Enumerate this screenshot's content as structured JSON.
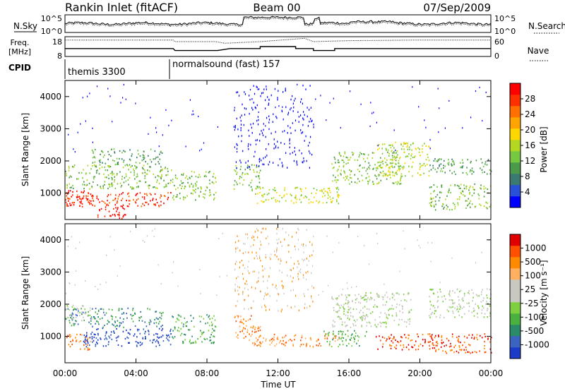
{
  "header": {
    "station": "Rankin Inlet (fitACF)",
    "beam": "Beam 00",
    "date": "07/Sep/2009"
  },
  "chart_data": [
    {
      "type": "line",
      "name": "noise-panel",
      "left_label": "N.Sky",
      "right_label": "N.Search",
      "left_ticks": [
        "10^5",
        "10^0"
      ],
      "right_ticks": [
        "10^5",
        "10^0"
      ],
      "series_style": [
        "solid",
        "dotted"
      ]
    },
    {
      "type": "line",
      "name": "freq-nave-panel",
      "left_label_line1": "Freq.",
      "left_label_line2": "[MHz]",
      "right_label": "Nave",
      "left_ticks": [
        18,
        8
      ],
      "right_ticks": [
        60,
        0
      ],
      "ylim_left": [
        8,
        18
      ],
      "ylim_right": [
        0,
        60
      ],
      "freq_steps": [
        [
          0,
          6.1,
          12
        ],
        [
          6.2,
          8.6,
          11
        ],
        [
          9.3,
          11.0,
          12
        ],
        [
          11.0,
          13.0,
          13
        ],
        [
          13.0,
          14.0,
          12
        ],
        [
          14.0,
          15.2,
          11
        ],
        [
          15.2,
          20.0,
          12
        ],
        [
          20.0,
          24.0,
          12
        ]
      ],
      "nave_points": [
        [
          0,
          50
        ],
        [
          6.1,
          50
        ],
        [
          6.2,
          45
        ],
        [
          8.5,
          45
        ],
        [
          9.0,
          40
        ],
        [
          11.0,
          45
        ],
        [
          13.5,
          55
        ],
        [
          14.0,
          45
        ],
        [
          16.0,
          48
        ],
        [
          20.0,
          50
        ],
        [
          24.0,
          50
        ]
      ]
    },
    {
      "type": "table",
      "name": "cpid-strip",
      "label": "CPID",
      "modes": [
        {
          "name": "themis 3300",
          "start_hour": 0
        },
        {
          "name": "normalsound (fast) 157",
          "start_hour": 6.15
        }
      ]
    },
    {
      "type": "heatmap",
      "name": "power-panel",
      "ylabel": "Slant Range [km]",
      "yticks": [
        1000,
        2000,
        3000,
        4000
      ],
      "ylim": [
        180,
        4500
      ],
      "xlim_hours": [
        0,
        24
      ],
      "colorbar_label": "Power [dB]",
      "colorbar_ticks": [
        4,
        8,
        12,
        16,
        20,
        24,
        28
      ],
      "colorbar_colors": [
        "#0000ff",
        "#2850d8",
        "#3a7a70",
        "#4a9a4a",
        "#76c840",
        "#b4d820",
        "#ffd700",
        "#ffa400",
        "#ff7000",
        "#ff3000",
        "#ff0000"
      ],
      "echo_regions": [
        {
          "x": [
            0.0,
            1.8
          ],
          "y": [
            600,
            1100
          ],
          "level": 10
        },
        {
          "x": [
            0.0,
            6.0
          ],
          "y": [
            600,
            1050
          ],
          "level": 9
        },
        {
          "x": [
            0.0,
            6.0
          ],
          "y": [
            1150,
            1900
          ],
          "level": 4
        },
        {
          "x": [
            1.8,
            3.4
          ],
          "y": [
            200,
            650
          ],
          "level": 10
        },
        {
          "x": [
            1.5,
            5.5
          ],
          "y": [
            1900,
            2400
          ],
          "level": 3
        },
        {
          "x": [
            6.0,
            8.5
          ],
          "y": [
            800,
            1700
          ],
          "level": 4
        },
        {
          "x": [
            9.5,
            11.0
          ],
          "y": [
            1100,
            1900
          ],
          "level": 4
        },
        {
          "x": [
            10.5,
            15.5
          ],
          "y": [
            700,
            1200
          ],
          "level": 5
        },
        {
          "x": [
            15.0,
            19.0
          ],
          "y": [
            1300,
            2300
          ],
          "level": 4
        },
        {
          "x": [
            17.5,
            20.5
          ],
          "y": [
            1500,
            2600
          ],
          "level": 5
        },
        {
          "x": [
            20.5,
            24.0
          ],
          "y": [
            1600,
            2100
          ],
          "level": 3
        },
        {
          "x": [
            20.5,
            24.0
          ],
          "y": [
            500,
            1300
          ],
          "level": 4
        }
      ]
    },
    {
      "type": "heatmap",
      "name": "velocity-panel",
      "ylabel": "Slant Range [km]",
      "yticks": [
        1000,
        2000,
        3000,
        4000
      ],
      "ylim": [
        180,
        4500
      ],
      "xlabel": "Time UT",
      "xticks": [
        "00:00",
        "04:00",
        "08:00",
        "12:00",
        "16:00",
        "20:00",
        "00:00"
      ],
      "xlim_hours": [
        0,
        24
      ],
      "colorbar_label": "Velocity [m s⁻¹]",
      "colorbar_ticks": [
        "1000",
        "500",
        "100",
        "25",
        "-25",
        "-100",
        "-500",
        "-1000"
      ],
      "colorbar_colors": [
        "#1a3cc8",
        "#3a64c0",
        "#2a8a6a",
        "#4ab040",
        "#7ed040",
        "#c8c8c0",
        "#c8c8c0",
        "#ffb060",
        "#ff8a00",
        "#ff5000",
        "#e00000"
      ],
      "echo_regions": [
        {
          "x": [
            0.0,
            1.5
          ],
          "y": [
            600,
            1100
          ],
          "level": 8
        },
        {
          "x": [
            1.0,
            6.0
          ],
          "y": [
            700,
            1300
          ],
          "level": 0
        },
        {
          "x": [
            0.0,
            5.5
          ],
          "y": [
            1300,
            1900
          ],
          "level": 2
        },
        {
          "x": [
            0.0,
            1.5
          ],
          "y": [
            1500,
            2000
          ],
          "level": 5
        },
        {
          "x": [
            6.0,
            8.5
          ],
          "y": [
            800,
            1700
          ],
          "level": 3
        },
        {
          "x": [
            9.5,
            11.0
          ],
          "y": [
            900,
            1700
          ],
          "level": 8
        },
        {
          "x": [
            10.5,
            15.5
          ],
          "y": [
            700,
            1100
          ],
          "level": 8
        },
        {
          "x": [
            15.0,
            19.5
          ],
          "y": [
            1300,
            2400
          ],
          "level": 5
        },
        {
          "x": [
            14.5,
            17.0
          ],
          "y": [
            700,
            1200
          ],
          "level": 3
        },
        {
          "x": [
            17.5,
            21.0
          ],
          "y": [
            600,
            1100
          ],
          "level": 9
        },
        {
          "x": [
            20.5,
            24.0
          ],
          "y": [
            500,
            1100
          ],
          "level": 9
        },
        {
          "x": [
            20.5,
            24.0
          ],
          "y": [
            1600,
            2500
          ],
          "level": 5
        }
      ]
    }
  ]
}
